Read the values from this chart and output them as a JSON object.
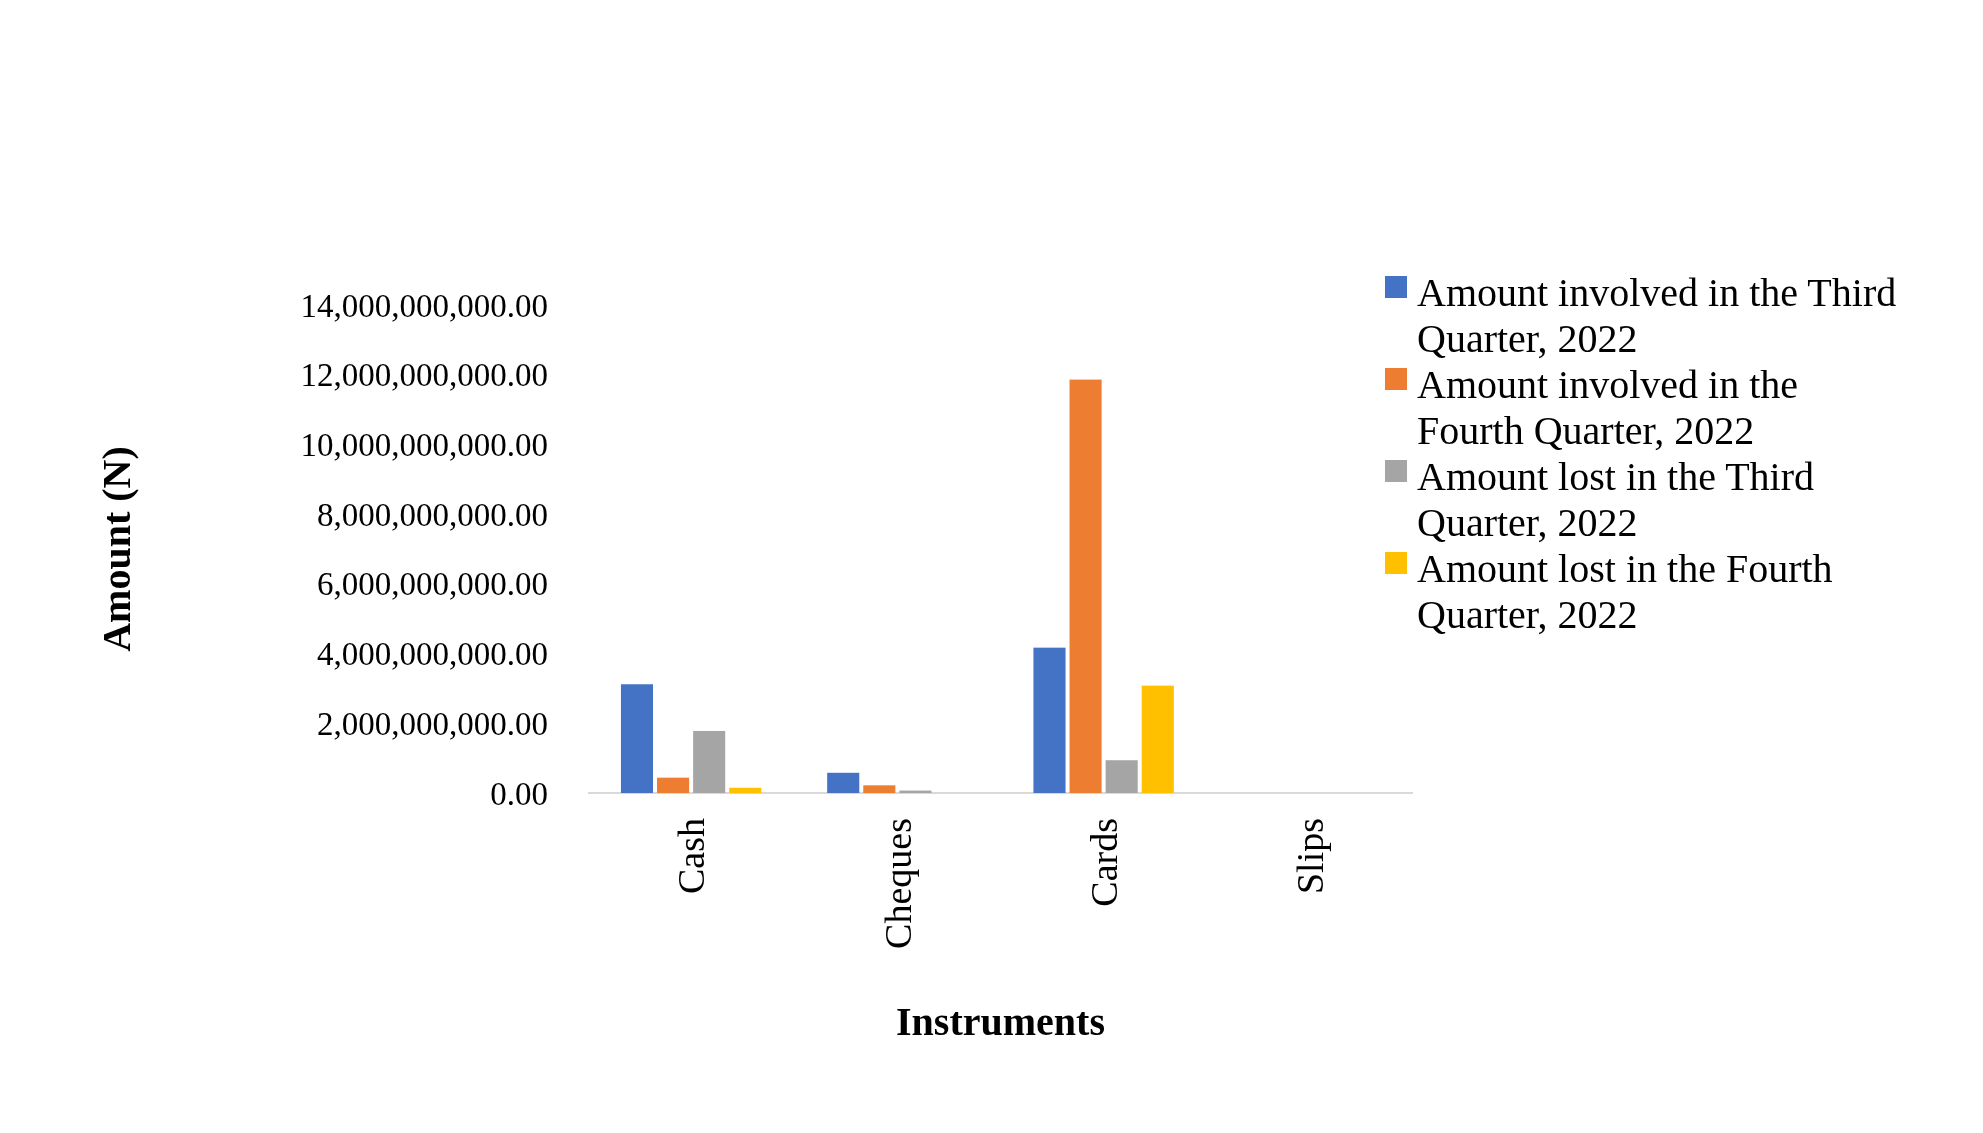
{
  "chart_data": {
    "type": "bar",
    "xlabel": "Instruments",
    "ylabel": "Amount (N)",
    "categories": [
      "Cash",
      "Cheques",
      "Cards",
      "Slips"
    ],
    "series": [
      {
        "name": "Amount involved in the Third Quarter, 2022",
        "color": "#4472c4",
        "values": [
          3120000000,
          580000000,
          4170000000,
          0
        ]
      },
      {
        "name": "Amount involved in the Fourth Quarter, 2022",
        "color": "#ed7d31",
        "values": [
          440000000,
          220000000,
          11860000000,
          0
        ]
      },
      {
        "name": "Amount lost in the Third Quarter, 2022",
        "color": "#a5a5a5",
        "values": [
          1780000000,
          70000000,
          940000000,
          0
        ]
      },
      {
        "name": "Amount lost in the Fourth Quarter, 2022",
        "color": "#ffc000",
        "values": [
          150000000,
          0,
          3080000000,
          0
        ]
      }
    ],
    "ylim": [
      0,
      14000000000
    ],
    "yticks": [
      {
        "value": 0,
        "label": "0.00"
      },
      {
        "value": 2000000000,
        "label": "2,000,000,000.00"
      },
      {
        "value": 4000000000,
        "label": "4,000,000,000.00"
      },
      {
        "value": 6000000000,
        "label": "6,000,000,000.00"
      },
      {
        "value": 8000000000,
        "label": "8,000,000,000.00"
      },
      {
        "value": 10000000000,
        "label": "10,000,000,000.00"
      },
      {
        "value": 12000000000,
        "label": "12,000,000,000.00"
      },
      {
        "value": 14000000000,
        "label": "14,000,000,000.00"
      }
    ],
    "grid": false,
    "legend": "right"
  }
}
